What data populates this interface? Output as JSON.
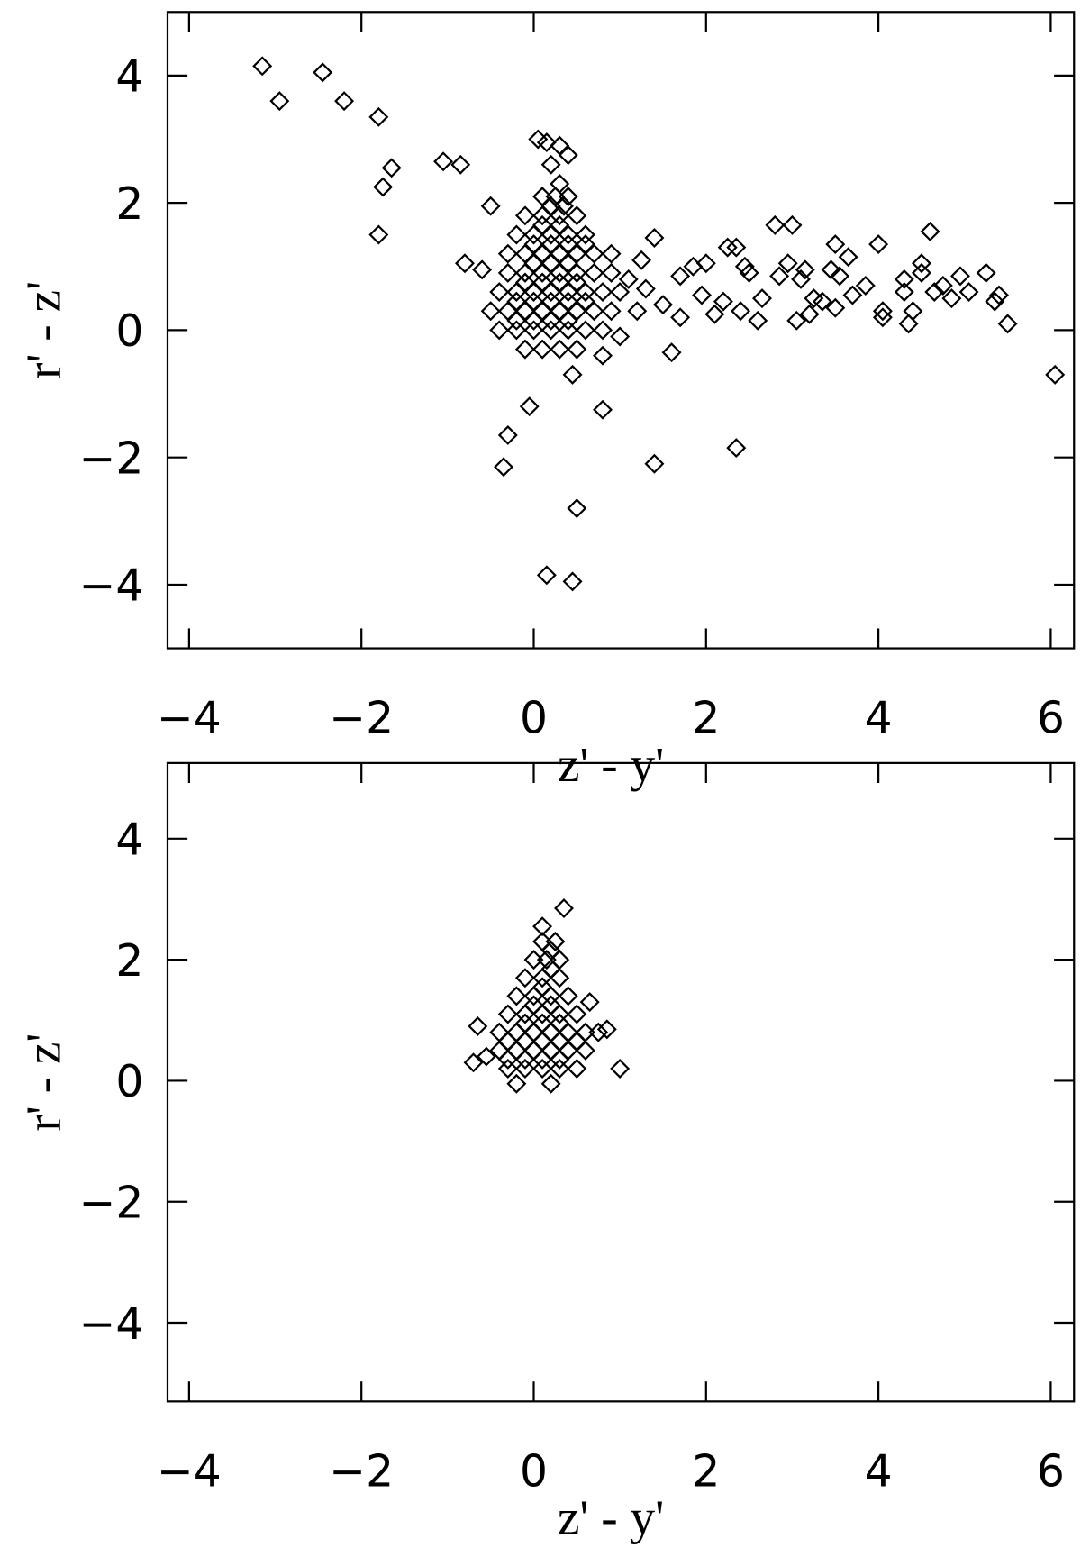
{
  "chart_data": [
    {
      "type": "scatter",
      "marker": "diamond",
      "color": "#000000",
      "x_label": "z' - y'",
      "y_label": "r' - z'",
      "xlim": [
        -4.25,
        6.27
      ],
      "ylim": [
        -5,
        5
      ],
      "xticks": [
        {
          "value": -4,
          "label": "−4"
        },
        {
          "value": -2,
          "label": "−2"
        },
        0,
        2,
        4,
        6
      ],
      "yticks": [
        {
          "value": -4,
          "label": "−4"
        },
        {
          "value": -2,
          "label": "−2"
        },
        0,
        2,
        4
      ],
      "x": [
        -3.15,
        -2.95,
        -2.45,
        -2.2,
        -1.8,
        -1.75,
        -1.65,
        -1.8,
        -1.05,
        -0.85,
        0.05,
        0.15,
        0.3,
        0.4,
        0.2,
        -0.5,
        -0.8,
        -0.6,
        0.45,
        0.8,
        -0.05,
        -0.3,
        -0.35,
        1.4,
        2.35,
        0.5,
        0.15,
        0.45,
        6.05,
        5.5,
        5.4,
        5.35,
        5.25,
        5.05,
        4.95,
        4.85,
        4.75,
        4.65,
        4.6,
        4.5,
        4.5,
        4.4,
        4.35,
        4.3,
        4.3,
        4.05,
        4.0,
        4.05,
        3.85,
        3.7,
        3.65,
        3.5,
        3.55,
        3.5,
        3.45,
        3.35,
        3.25,
        3.2,
        3.15,
        3.05,
        3.1,
        3.0,
        2.95,
        2.85,
        2.8,
        2.65,
        2.6,
        2.5,
        2.45,
        2.35,
        2.25,
        2.2,
        2.1,
        2.0,
        1.95,
        1.85,
        1.7,
        1.7,
        1.6,
        1.5,
        1.4,
        1.3,
        1.2,
        1.0,
        0.8,
        2.4,
        1.1,
        1.25,
        0.9,
        0.6,
        -0.1,
        0.1,
        0.3,
        0.5,
        -0.4,
        -0.2,
        0,
        0.2,
        0.4,
        0.6,
        0.8,
        -0.5,
        -0.3,
        -0.1,
        0.1,
        0.3,
        0.5,
        0.7,
        0.9,
        -0.4,
        -0.2,
        0,
        0.2,
        0.4,
        0.6,
        0.8,
        1.0,
        -0.3,
        -0.1,
        0.1,
        0.3,
        0.5,
        0.7,
        0.9,
        -0.3,
        -0.1,
        0.1,
        0.3,
        0.5,
        0.7,
        -0.2,
        0,
        0.2,
        0.4,
        0.6,
        -0.1,
        0.1,
        0.3,
        0.5,
        0.1,
        0.25,
        0.4,
        -0.2,
        0,
        0.2,
        0.4,
        -0.2,
        0,
        0.2,
        0.4,
        0.6,
        -0.1,
        0.1,
        0.3,
        0.5,
        0,
        0.2,
        0.4,
        0,
        0.2,
        0.4,
        0.1,
        0.3,
        0.2,
        0.35,
        0.3
      ],
      "values": [
        4.15,
        3.6,
        4.05,
        3.6,
        3.35,
        2.25,
        2.55,
        1.5,
        2.65,
        2.6,
        3.0,
        2.95,
        2.9,
        2.75,
        2.6,
        1.95,
        1.05,
        0.95,
        -0.7,
        -1.25,
        -1.2,
        -1.65,
        -2.15,
        -2.1,
        -1.85,
        -2.8,
        -3.85,
        -3.95,
        -0.7,
        0.1,
        0.55,
        0.45,
        0.9,
        0.6,
        0.85,
        0.5,
        0.7,
        0.6,
        1.55,
        1.05,
        0.9,
        0.3,
        0.1,
        0.6,
        0.8,
        0.3,
        1.35,
        0.2,
        0.7,
        0.55,
        1.15,
        0.35,
        0.85,
        1.35,
        0.95,
        0.45,
        0.5,
        0.25,
        0.95,
        0.15,
        0.8,
        1.65,
        1.05,
        0.85,
        1.65,
        0.5,
        0.15,
        0.9,
        1.0,
        1.3,
        1.3,
        0.45,
        0.25,
        1.05,
        0.55,
        1.0,
        0.85,
        0.2,
        -0.35,
        0.4,
        1.45,
        0.65,
        0.3,
        -0.1,
        -0.4,
        0.3,
        0.8,
        1.1,
        1.2,
        1.35,
        -0.3,
        -0.3,
        -0.3,
        -0.3,
        0,
        0,
        0,
        0,
        0,
        0,
        0,
        0.3,
        0.3,
        0.3,
        0.3,
        0.3,
        0.3,
        0.3,
        0.3,
        0.6,
        0.6,
        0.6,
        0.6,
        0.6,
        0.6,
        0.6,
        0.6,
        0.9,
        0.9,
        0.9,
        0.9,
        0.9,
        0.9,
        0.9,
        1.2,
        1.2,
        1.2,
        1.2,
        1.2,
        1.2,
        1.5,
        1.5,
        1.5,
        1.5,
        1.5,
        1.8,
        1.8,
        1.8,
        1.8,
        2.1,
        2.1,
        2.1,
        0.15,
        0.15,
        0.15,
        0.15,
        0.45,
        0.45,
        0.45,
        0.45,
        0.45,
        0.75,
        0.75,
        0.75,
        0.75,
        1.05,
        1.05,
        1.05,
        1.35,
        1.35,
        1.35,
        1.65,
        1.65,
        1.95,
        1.95,
        2.3
      ]
    },
    {
      "type": "scatter",
      "marker": "diamond",
      "color": "#000000",
      "x_label": "z' - y'",
      "y_label": "r' - z'",
      "xlim": [
        -4.25,
        6.27
      ],
      "ylim": [
        -5.3,
        5.25
      ],
      "xticks": [
        {
          "value": -4,
          "label": "−4"
        },
        {
          "value": -2,
          "label": "−2"
        },
        0,
        2,
        4,
        6
      ],
      "yticks": [
        {
          "value": -4,
          "label": "−4"
        },
        {
          "value": -2,
          "label": "−2"
        },
        0,
        2,
        4
      ],
      "x": [
        0.35,
        0.1,
        -0.7,
        -0.65,
        -0.55,
        1.0,
        0.85,
        0.75,
        0.65,
        -0.2,
        0.2,
        -0.3,
        -0.1,
        0.1,
        0.3,
        0.5,
        -0.4,
        -0.2,
        0,
        0.2,
        0.4,
        0.6,
        -0.4,
        -0.2,
        0,
        0.2,
        0.4,
        0.6,
        -0.3,
        -0.1,
        0.1,
        0.3,
        0.5,
        -0.2,
        0,
        0.2,
        0.4,
        -0.1,
        0.1,
        0.3,
        0,
        0.15,
        0.3,
        0.1,
        0.25,
        -0.3,
        -0.1,
        0.1,
        0.3,
        -0.3,
        -0.1,
        0.1,
        0.3,
        0.5,
        -0.1,
        0.1,
        0.3,
        0,
        0.2,
        0.1,
        0.2,
        0.2
      ],
      "values": [
        2.85,
        2.55,
        0.3,
        0.9,
        0.4,
        0.2,
        0.85,
        0.8,
        1.3,
        -0.05,
        -0.05,
        0.2,
        0.2,
        0.2,
        0.2,
        0.2,
        0.5,
        0.5,
        0.5,
        0.5,
        0.5,
        0.5,
        0.8,
        0.8,
        0.8,
        0.8,
        0.8,
        0.8,
        1.1,
        1.1,
        1.1,
        1.1,
        1.1,
        1.4,
        1.4,
        1.4,
        1.4,
        1.7,
        1.7,
        1.7,
        2.0,
        2.0,
        2.0,
        2.3,
        2.3,
        0.35,
        0.35,
        0.35,
        0.35,
        0.65,
        0.65,
        0.65,
        0.65,
        0.65,
        0.95,
        0.95,
        0.95,
        1.25,
        1.25,
        1.55,
        1.85,
        2.15
      ]
    }
  ]
}
